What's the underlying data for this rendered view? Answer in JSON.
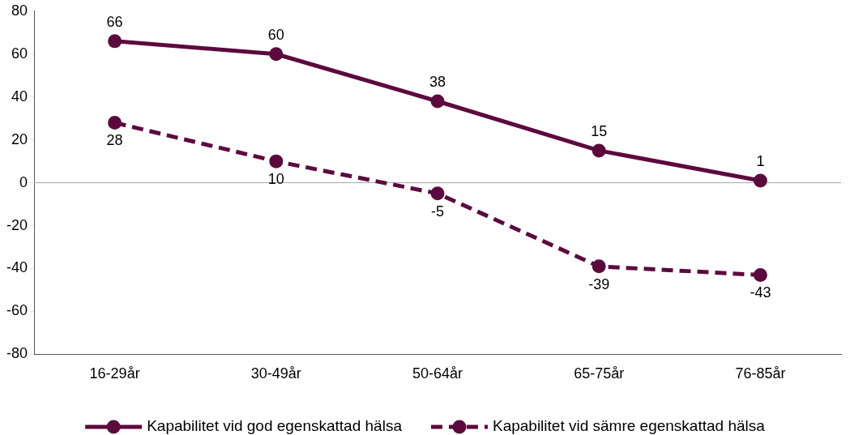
{
  "chart_data": {
    "type": "line",
    "categories": [
      "16-29år",
      "30-49år",
      "50-64år",
      "65-75år",
      "76-85år"
    ],
    "series": [
      {
        "name": "Kapabilitet vid god egenskattad hälsa",
        "color": "#5c0a3e",
        "values": [
          66,
          60,
          38,
          15,
          1
        ],
        "line_style": "solid"
      },
      {
        "name": "Kapabilitet vid sämre egenskattad hälsa",
        "color": "#5c0a3e",
        "values": [
          28,
          10,
          -5,
          -39,
          -43
        ],
        "line_style": "dashed"
      }
    ],
    "ylim": [
      -80,
      80
    ],
    "yticks": [
      -80,
      -60,
      -40,
      -20,
      0,
      20,
      40,
      60,
      80
    ],
    "grid": false,
    "legend": "bottom",
    "marker": "circle",
    "data_labels": true,
    "ref_lines": [
      {
        "axis": "y",
        "value": 0,
        "color": "#a6a6a6"
      }
    ]
  }
}
